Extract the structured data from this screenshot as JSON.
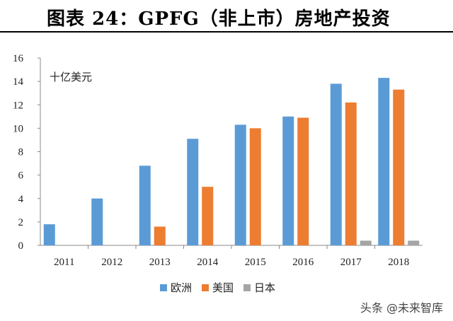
{
  "title": "图表 24：GPFG（非上市）房地产投资",
  "watermark": "头条 @未来智库",
  "chart_data": {
    "type": "bar",
    "unit_label": "十亿美元",
    "categories": [
      "2011",
      "2012",
      "2013",
      "2014",
      "2015",
      "2016",
      "2017",
      "2018"
    ],
    "ylim": [
      0,
      16
    ],
    "yticks": [
      0,
      2,
      4,
      6,
      8,
      10,
      12,
      14,
      16
    ],
    "grid": false,
    "legend_position": "bottom",
    "series": [
      {
        "name": "欧洲",
        "color": "#5B9BD5",
        "values": [
          1.8,
          4.0,
          6.8,
          9.1,
          10.3,
          11.0,
          13.8,
          14.3
        ]
      },
      {
        "name": "美国",
        "color": "#ED7D31",
        "values": [
          0,
          0,
          1.6,
          5.0,
          10.0,
          10.9,
          12.2,
          13.3
        ]
      },
      {
        "name": "日本",
        "color": "#A5A5A5",
        "values": [
          0,
          0,
          0,
          0,
          0,
          0,
          0.4,
          0.4
        ]
      }
    ]
  }
}
